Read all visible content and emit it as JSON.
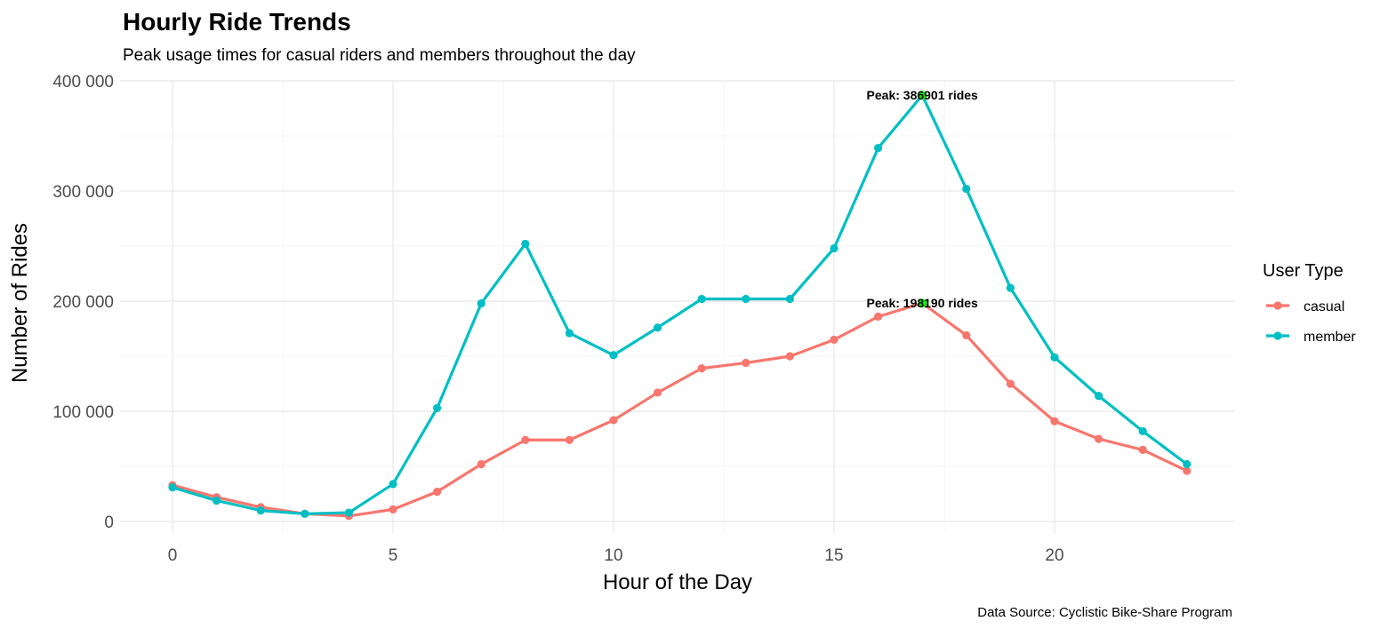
{
  "chart_data": {
    "type": "line",
    "title": "Hourly Ride Trends",
    "subtitle": "Peak usage times for casual riders and members throughout the day",
    "xlabel": "Hour of the Day",
    "ylabel": "Number of Rides",
    "caption": "Data Source: Cyclistic Bike-Share Program",
    "xlim": [
      -1,
      24
    ],
    "ylim": [
      0,
      400000
    ],
    "x_ticks": [
      0,
      5,
      10,
      15,
      20
    ],
    "x_tick_labels": [
      "0",
      "5",
      "10",
      "15",
      "20"
    ],
    "y_ticks": [
      0,
      100000,
      200000,
      300000,
      400000
    ],
    "y_tick_labels": [
      "0",
      "100 000",
      "200 000",
      "300 000",
      "400 000"
    ],
    "grid": true,
    "legend": {
      "title": "User Type",
      "position": "right"
    },
    "x": [
      0,
      1,
      2,
      3,
      4,
      5,
      6,
      7,
      8,
      9,
      10,
      11,
      12,
      13,
      14,
      15,
      16,
      17,
      18,
      19,
      20,
      21,
      22,
      23
    ],
    "series": [
      {
        "name": "casual",
        "color": "#F8766D",
        "values": [
          33000,
          22000,
          13000,
          7000,
          5000,
          11000,
          27000,
          52000,
          74000,
          74000,
          92000,
          117000,
          139000,
          144000,
          150000,
          165000,
          186000,
          198190,
          169000,
          125000,
          91000,
          75000,
          65000,
          46000
        ]
      },
      {
        "name": "member",
        "color": "#00BFC4",
        "values": [
          31000,
          19000,
          10000,
          7000,
          8000,
          34000,
          103000,
          198000,
          252000,
          171000,
          151000,
          176000,
          202000,
          202000,
          202000,
          248000,
          339000,
          386901,
          302000,
          212000,
          149000,
          114000,
          82000,
          52000
        ]
      }
    ],
    "annotations": [
      {
        "label": "Peak: 198190 rides",
        "x": 17,
        "y": 198190,
        "marker_color": "#00FF00"
      },
      {
        "label": "Peak: 386901 rides",
        "x": 17,
        "y": 386901,
        "marker_color": "#00FF00"
      }
    ]
  }
}
